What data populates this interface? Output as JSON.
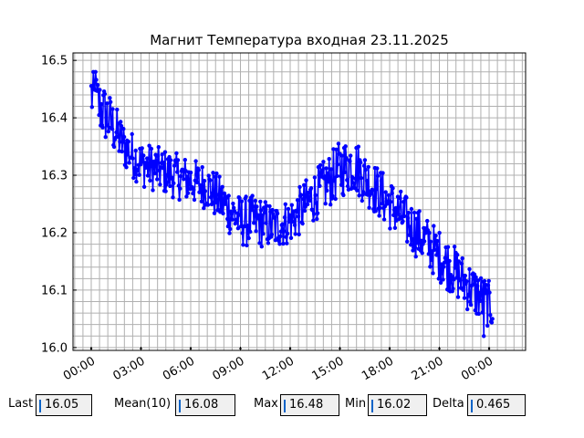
{
  "chart_data": {
    "type": "line",
    "title": "Магнит Температура входная 23.11.2025",
    "xlabel": "",
    "ylabel": "",
    "x_tick_labels": [
      "00:00",
      "03:00",
      "06:00",
      "09:00",
      "12:00",
      "15:00",
      "18:00",
      "21:00",
      "00:00"
    ],
    "x_tick_hours": [
      0,
      3,
      6,
      9,
      12,
      15,
      18,
      21,
      24
    ],
    "xlim_hours": [
      -1.1,
      26.2
    ],
    "y_tick_labels": [
      "16.0",
      "16.1",
      "16.2",
      "16.3",
      "16.4",
      "16.5"
    ],
    "y_ticks": [
      16.0,
      16.1,
      16.2,
      16.3,
      16.4,
      16.5
    ],
    "ylim": [
      15.995,
      16.513
    ],
    "grid": true,
    "series": [
      {
        "color": "#0000ff",
        "marker": "circle",
        "points_description": "noisy temperature trace sampled roughly every few minutes",
        "trend_hours": [
          0,
          1,
          2,
          3,
          5,
          7,
          9,
          10,
          11,
          12,
          13,
          14,
          15,
          15.8,
          17,
          18,
          20,
          22,
          23,
          24.2
        ],
        "trend_values": [
          16.44,
          16.4,
          16.35,
          16.32,
          16.3,
          16.28,
          16.22,
          16.22,
          16.21,
          16.22,
          16.25,
          16.28,
          16.31,
          16.32,
          16.28,
          16.25,
          16.19,
          16.13,
          16.1,
          16.07
        ],
        "amplitude": [
          0.05,
          0.05,
          0.04,
          0.04,
          0.04,
          0.04,
          0.045,
          0.045,
          0.04,
          0.04,
          0.045,
          0.045,
          0.05,
          0.05,
          0.045,
          0.045,
          0.045,
          0.045,
          0.045,
          0.04
        ],
        "min": 16.02,
        "max": 16.48,
        "last": 16.05
      }
    ]
  },
  "stats": {
    "last_label": "Last",
    "last_value": "16.05",
    "mean_label": "Mean(10)",
    "mean_value": "16.08",
    "max_label": "Max",
    "max_value": "16.48",
    "min_label": "Min",
    "min_value": "16.02",
    "delta_label": "Delta",
    "delta_value": "0.465"
  }
}
